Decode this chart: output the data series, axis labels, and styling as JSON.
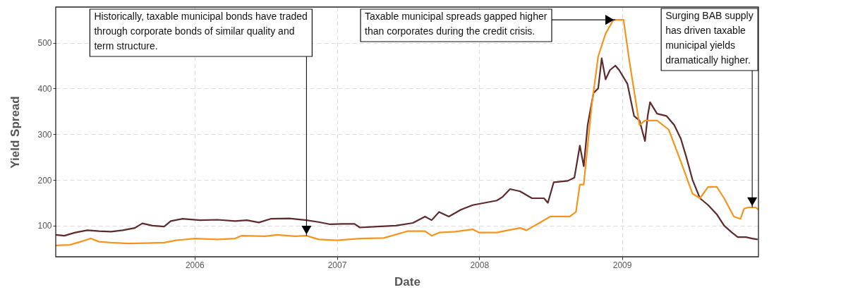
{
  "chart_data": {
    "type": "line",
    "xlabel": "Date",
    "ylabel": "Yield Spread",
    "xlim": [
      "2005-01-10",
      "2009-12-17"
    ],
    "xticks": [
      {
        "value": "2006",
        "label": "2006"
      },
      {
        "value": "2007",
        "label": "2007"
      },
      {
        "value": "2008",
        "label": "2008"
      },
      {
        "value": "2009",
        "label": "2009"
      }
    ],
    "ylim": [
      32,
      578
    ],
    "yticks": [
      100,
      200,
      300,
      400,
      500
    ],
    "grid": true,
    "series": [
      {
        "color": "#5e2a2c",
        "x": [
          "2005-01-10",
          "2005-02-01",
          "2005-03-01",
          "2005-04-01",
          "2005-05-01",
          "2005-06-01",
          "2005-07-01",
          "2005-08-01",
          "2005-08-20",
          "2005-09-15",
          "2005-10-15",
          "2005-11-01",
          "2005-12-01",
          "2006-01-15",
          "2006-03-01",
          "2006-04-15",
          "2006-05-15",
          "2006-06-15",
          "2006-07-15",
          "2006-09-01",
          "2006-10-15",
          "2006-11-15",
          "2006-12-15",
          "2007-01-15",
          "2007-02-15",
          "2007-03-01",
          "2007-04-15",
          "2007-06-01",
          "2007-07-15",
          "2007-08-15",
          "2007-09-01",
          "2007-09-20",
          "2007-10-15",
          "2007-11-15",
          "2007-12-15",
          "2008-01-15",
          "2008-02-15",
          "2008-03-01",
          "2008-03-20",
          "2008-04-15",
          "2008-05-15",
          "2008-06-15",
          "2008-06-25",
          "2008-07-10",
          "2008-08-15",
          "2008-09-01",
          "2008-09-15",
          "2008-09-25",
          "2008-10-05",
          "2008-10-20",
          "2008-11-01",
          "2008-11-10",
          "2008-11-20",
          "2008-12-01",
          "2008-12-15",
          "2008-12-25",
          "2009-01-15",
          "2009-02-01",
          "2009-02-15",
          "2009-03-01",
          "2009-03-08",
          "2009-03-14",
          "2009-04-01",
          "2009-04-25",
          "2009-05-15",
          "2009-06-01",
          "2009-06-15",
          "2009-07-01",
          "2009-07-20",
          "2009-08-10",
          "2009-09-01",
          "2009-09-20",
          "2009-10-10",
          "2009-10-25",
          "2009-11-15",
          "2009-12-01",
          "2009-12-15"
        ],
        "values": [
          80,
          78,
          85,
          90,
          88,
          87,
          90,
          95,
          105,
          100,
          98,
          110,
          115,
          112,
          113,
          110,
          112,
          107,
          115,
          116,
          112,
          108,
          103,
          104,
          104,
          96,
          98,
          100,
          106,
          120,
          112,
          130,
          120,
          135,
          145,
          150,
          155,
          163,
          180,
          175,
          160,
          160,
          150,
          195,
          198,
          205,
          275,
          230,
          320,
          390,
          400,
          466,
          420,
          440,
          450,
          440,
          410,
          340,
          330,
          285,
          340,
          370,
          345,
          340,
          320,
          290,
          250,
          200,
          160,
          145,
          125,
          100,
          85,
          75,
          75,
          72,
          70
        ]
      },
      {
        "color": "#f7941d",
        "x": [
          "2005-01-10",
          "2005-02-15",
          "2005-03-15",
          "2005-04-10",
          "2005-05-01",
          "2005-06-01",
          "2005-07-15",
          "2005-09-01",
          "2005-10-15",
          "2005-11-15",
          "2006-01-01",
          "2006-03-01",
          "2006-04-15",
          "2006-05-01",
          "2006-07-01",
          "2006-08-01",
          "2006-09-15",
          "2006-10-15",
          "2006-11-15",
          "2007-01-01",
          "2007-03-01",
          "2007-05-01",
          "2007-07-01",
          "2007-08-15",
          "2007-09-01",
          "2007-09-20",
          "2007-11-01",
          "2007-12-15",
          "2008-01-01",
          "2008-02-15",
          "2008-03-15",
          "2008-04-15",
          "2008-05-01",
          "2008-06-01",
          "2008-07-01",
          "2008-08-20",
          "2008-09-05",
          "2008-09-15",
          "2008-09-25",
          "2008-10-15",
          "2008-11-01",
          "2008-11-20",
          "2008-12-10",
          "2009-01-05",
          "2009-01-20",
          "2009-02-15",
          "2009-03-01",
          "2009-04-01",
          "2009-05-01",
          "2009-06-01",
          "2009-07-01",
          "2009-07-20",
          "2009-08-10",
          "2009-09-01",
          "2009-09-20",
          "2009-10-15",
          "2009-11-01",
          "2009-11-10",
          "2009-11-20",
          "2009-12-10",
          "2009-12-17"
        ],
        "values": [
          57,
          58,
          65,
          72,
          65,
          63,
          61,
          62,
          63,
          68,
          72,
          70,
          72,
          78,
          77,
          80,
          77,
          78,
          70,
          68,
          72,
          73,
          88,
          88,
          78,
          85,
          87,
          92,
          85,
          85,
          90,
          95,
          90,
          105,
          120,
          120,
          130,
          190,
          190,
          360,
          470,
          520,
          550,
          550,
          460,
          320,
          330,
          330,
          310,
          240,
          170,
          160,
          185,
          185,
          160,
          120,
          115,
          137,
          140,
          140,
          135
        ]
      }
    ],
    "annotations": [
      {
        "text": "Historically, taxable municipal bonds have traded through corporate bonds of similar quality and term structure.",
        "x": "2006-10-15",
        "y": 78
      },
      {
        "text": "Taxable municipal spreads gapped higher than corporates during the credit crisis.",
        "x": "2008-12-15",
        "y": 550
      },
      {
        "text": "Surging BAB supply has driven taxable municipal yields dramatically higher.",
        "x": "2009-12-01",
        "y": 140
      }
    ]
  }
}
